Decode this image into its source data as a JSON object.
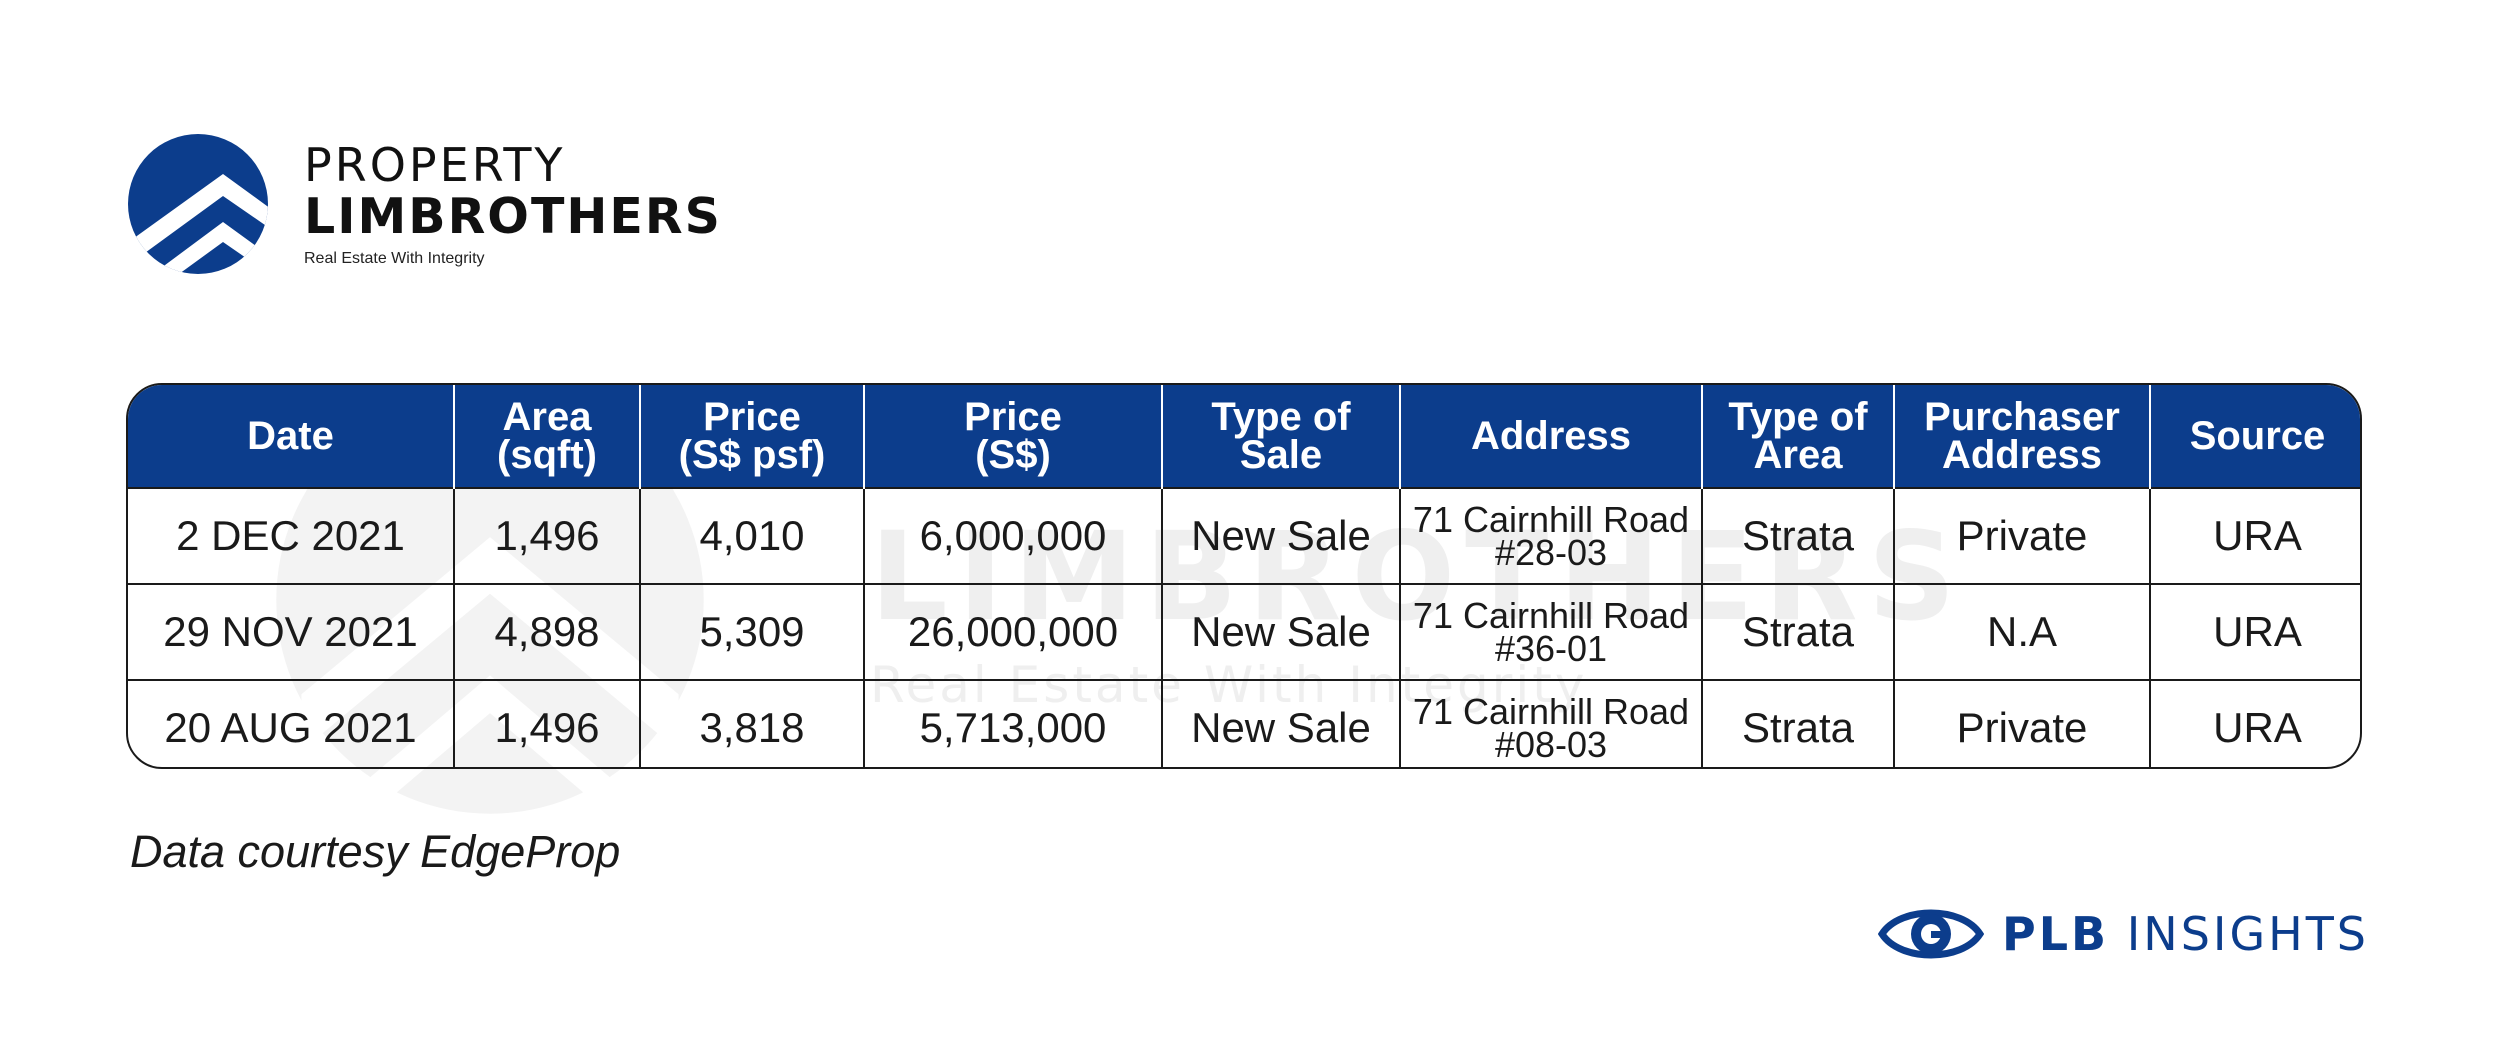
{
  "brand": {
    "line1": "PROPERTY",
    "line2": "LIMBROTHERS",
    "tagline": "Real Estate With Integrity",
    "color": "#0c3d8c"
  },
  "watermark": {
    "line1": "PROPERTY",
    "line2": "LIMBROTHERS",
    "line3": "Real Estate With Integrity"
  },
  "table": {
    "header_color": "#0c3d8c",
    "headers": [
      [
        "Date"
      ],
      [
        "Area",
        "(sqft)"
      ],
      [
        "Price",
        "(S$ psf)"
      ],
      [
        "Price",
        "(S$)"
      ],
      [
        "Type of",
        "Sale"
      ],
      [
        "Address"
      ],
      [
        "Type of",
        "Area"
      ],
      [
        "Purchaser",
        "Address"
      ],
      [
        "Source"
      ]
    ],
    "rows": [
      {
        "date": "2 DEC 2021",
        "area": "1,496",
        "price_psf": "4,010",
        "price": "6,000,000",
        "type_of_sale": "New Sale",
        "address_line1": "71 Cairnhill Road",
        "address_line2": "#28-03",
        "type_of_area": "Strata",
        "purchaser_address": "Private",
        "source": "URA"
      },
      {
        "date": "29 NOV 2021",
        "area": "4,898",
        "price_psf": "5,309",
        "price": "26,000,000",
        "type_of_sale": "New Sale",
        "address_line1": "71 Cairnhill Road",
        "address_line2": "#36-01",
        "type_of_area": "Strata",
        "purchaser_address": "N.A",
        "source": "URA"
      },
      {
        "date": "20 AUG 2021",
        "area": "1,496",
        "price_psf": "3,818",
        "price": "5,713,000",
        "type_of_sale": "New Sale",
        "address_line1": "71 Cairnhill Road",
        "address_line2": "#08-03",
        "type_of_area": "Strata",
        "purchaser_address": "Private",
        "source": "URA"
      }
    ]
  },
  "note": "Data courtesy EdgeProp",
  "footer": {
    "icon": "eye-icon",
    "bold": "PLB",
    "rest": "INSIGHTS"
  }
}
